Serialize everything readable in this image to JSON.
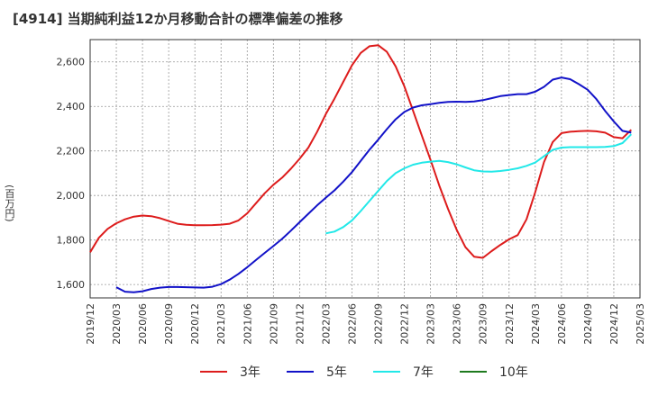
{
  "chart_data": {
    "type": "line",
    "title": "[4914]  当期純利益12か月移動合計の標準偏差の推移",
    "ylabel": "(百万円)",
    "ylim": [
      1540,
      2700
    ],
    "yticks": [
      1600,
      1800,
      2000,
      2200,
      2400,
      2600
    ],
    "ytick_labels": [
      "1,600",
      "1,800",
      "2,000",
      "2,200",
      "2,400",
      "2,600"
    ],
    "xlim": [
      "2019-12",
      "2025-03"
    ],
    "xtick_labels": [
      "2019/12",
      "2020/03",
      "2020/06",
      "2020/09",
      "2020/12",
      "2021/03",
      "2021/06",
      "2021/09",
      "2021/12",
      "2022/03",
      "2022/06",
      "2022/09",
      "2022/12",
      "2023/03",
      "2023/06",
      "2023/09",
      "2023/12",
      "2024/03",
      "2024/06",
      "2024/09",
      "2024/12",
      "2025/03"
    ],
    "grid": true,
    "legend_position": "bottom",
    "series": [
      {
        "name": "3年",
        "color": "#dd1c1c",
        "start": "2019-12",
        "values": [
          1745,
          1810,
          1850,
          1875,
          1893,
          1905,
          1910,
          1907,
          1898,
          1885,
          1873,
          1868,
          1866,
          1866,
          1867,
          1869,
          1873,
          1888,
          1920,
          1965,
          2010,
          2048,
          2080,
          2120,
          2165,
          2215,
          2285,
          2365,
          2435,
          2510,
          2585,
          2640,
          2670,
          2675,
          2645,
          2580,
          2490,
          2380,
          2270,
          2160,
          2045,
          1940,
          1845,
          1768,
          1725,
          1720,
          1750,
          1778,
          1803,
          1822,
          1893,
          2015,
          2150,
          2240,
          2280,
          2286,
          2289,
          2290,
          2288,
          2282,
          2262,
          2257,
          2295
        ]
      },
      {
        "name": "5年",
        "color": "#1212c8",
        "start": "2020-03",
        "values": [
          1588,
          1568,
          1565,
          1570,
          1580,
          1586,
          1589,
          1589,
          1588,
          1587,
          1586,
          1590,
          1602,
          1622,
          1648,
          1678,
          1710,
          1742,
          1773,
          1805,
          1842,
          1880,
          1918,
          1955,
          1990,
          2023,
          2062,
          2105,
          2155,
          2205,
          2250,
          2298,
          2342,
          2375,
          2395,
          2405,
          2410,
          2416,
          2420,
          2421,
          2420,
          2422,
          2428,
          2437,
          2446,
          2451,
          2455,
          2455,
          2466,
          2488,
          2520,
          2530,
          2522,
          2500,
          2475,
          2433,
          2380,
          2332,
          2290,
          2282
        ]
      },
      {
        "name": "7年",
        "color": "#22e8e8",
        "start": "2022-03",
        "values": [
          1830,
          1838,
          1858,
          1888,
          1930,
          1975,
          2020,
          2065,
          2100,
          2122,
          2138,
          2147,
          2152,
          2155,
          2150,
          2140,
          2126,
          2113,
          2108,
          2107,
          2110,
          2115,
          2122,
          2133,
          2148,
          2176,
          2205,
          2215,
          2217,
          2217,
          2217,
          2217,
          2218,
          2222,
          2235,
          2275
        ]
      },
      {
        "name": "10年",
        "color": "#1e7a1e",
        "start": "2022-03",
        "values": []
      }
    ]
  }
}
